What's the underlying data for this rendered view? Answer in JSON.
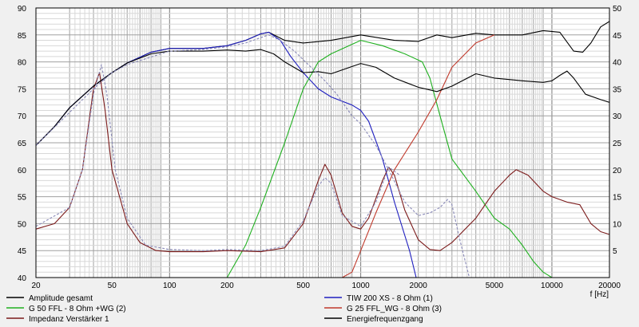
{
  "chart_data": {
    "type": "line",
    "xlabel": "f [Hz]",
    "x_scale": "log",
    "xlim": [
      20,
      20000
    ],
    "ylim_left": [
      40,
      90
    ],
    "ylim_right": [
      0,
      50
    ],
    "x_ticks": [
      {
        "v": 20,
        "label": "20"
      },
      {
        "v": 50,
        "label": "50"
      },
      {
        "v": 100,
        "label": "100"
      },
      {
        "v": 200,
        "label": "200"
      },
      {
        "v": 500,
        "label": "500"
      },
      {
        "v": 1000,
        "label": "1000"
      },
      {
        "v": 2000,
        "label": "2000"
      },
      {
        "v": 5000,
        "label": "5000"
      },
      {
        "v": 10000,
        "label": "10000"
      },
      {
        "v": 20000,
        "label": "20000"
      }
    ],
    "y_ticks_left": [
      "40",
      "45",
      "50",
      "55",
      "60",
      "65",
      "70",
      "75",
      "80",
      "85",
      "90"
    ],
    "y_ticks_right": [
      "5",
      "10",
      "15",
      "20",
      "25",
      "30",
      "35",
      "40",
      "45",
      "50"
    ],
    "grid": true,
    "legend_position": "bottom",
    "series": [
      {
        "name": "Amplitude gesamt",
        "color": "#000000",
        "axis": "left",
        "points": [
          [
            20,
            64.5
          ],
          [
            25,
            68
          ],
          [
            30,
            71.5
          ],
          [
            40,
            75.5
          ],
          [
            50,
            78
          ],
          [
            60,
            79.8
          ],
          [
            80,
            81.8
          ],
          [
            100,
            82.5
          ],
          [
            150,
            82.5
          ],
          [
            200,
            83
          ],
          [
            250,
            84
          ],
          [
            300,
            85.2
          ],
          [
            330,
            85.5
          ],
          [
            400,
            84
          ],
          [
            500,
            83.5
          ],
          [
            700,
            84
          ],
          [
            1000,
            85
          ],
          [
            1500,
            84
          ],
          [
            2000,
            83.8
          ],
          [
            2500,
            85
          ],
          [
            3000,
            84.5
          ],
          [
            4000,
            85.3
          ],
          [
            5000,
            85
          ],
          [
            7000,
            85
          ],
          [
            9000,
            85.8
          ],
          [
            11000,
            85.5
          ],
          [
            13000,
            82
          ],
          [
            14500,
            81.8
          ],
          [
            16000,
            83.5
          ],
          [
            18000,
            86.5
          ],
          [
            20000,
            87.5
          ]
        ]
      },
      {
        "name": "TIW 200 XS - 8 Ohm (1)",
        "color": "#1f1fbf",
        "axis": "left",
        "points": [
          [
            20,
            64.5
          ],
          [
            25,
            68
          ],
          [
            30,
            71.5
          ],
          [
            40,
            75.5
          ],
          [
            50,
            78
          ],
          [
            60,
            79.8
          ],
          [
            80,
            81.8
          ],
          [
            100,
            82.5
          ],
          [
            150,
            82.5
          ],
          [
            200,
            83
          ],
          [
            250,
            84
          ],
          [
            300,
            85.2
          ],
          [
            330,
            85.5
          ],
          [
            380,
            84
          ],
          [
            430,
            81
          ],
          [
            500,
            78
          ],
          [
            600,
            75
          ],
          [
            700,
            73.5
          ],
          [
            900,
            72
          ],
          [
            1000,
            71
          ],
          [
            1100,
            69
          ],
          [
            1300,
            62
          ],
          [
            1500,
            54
          ],
          [
            1800,
            45
          ],
          [
            1950,
            40
          ]
        ]
      },
      {
        "name": "G 50 FFL - 8 Ohm +WG (2)",
        "color": "#1fb01f",
        "axis": "left",
        "points": [
          [
            200,
            40
          ],
          [
            250,
            46
          ],
          [
            300,
            53
          ],
          [
            400,
            65
          ],
          [
            500,
            75
          ],
          [
            600,
            80
          ],
          [
            700,
            81.5
          ],
          [
            1000,
            84
          ],
          [
            1300,
            83
          ],
          [
            1700,
            81.5
          ],
          [
            2100,
            80
          ],
          [
            2300,
            77
          ],
          [
            2600,
            70
          ],
          [
            3000,
            62
          ],
          [
            4000,
            56
          ],
          [
            5000,
            51
          ],
          [
            6000,
            49
          ],
          [
            7000,
            46
          ],
          [
            8000,
            43
          ],
          [
            9000,
            41
          ],
          [
            10000,
            40
          ]
        ]
      },
      {
        "name": "G 25 FFL_WG - 8 Ohm (3)",
        "color": "#c0392b",
        "axis": "left",
        "points": [
          [
            800,
            40
          ],
          [
            900,
            41
          ],
          [
            1000,
            45
          ],
          [
            1200,
            52
          ],
          [
            1500,
            60
          ],
          [
            2000,
            67
          ],
          [
            2500,
            73
          ],
          [
            3000,
            79
          ],
          [
            4000,
            83.5
          ],
          [
            5000,
            85
          ]
        ]
      },
      {
        "name": "Impedanz Verstärker 1",
        "color": "#7b1a1a",
        "axis": "right",
        "points": [
          [
            20,
            9
          ],
          [
            25,
            10
          ],
          [
            30,
            13
          ],
          [
            35,
            20
          ],
          [
            40,
            35
          ],
          [
            43,
            38
          ],
          [
            46,
            31
          ],
          [
            50,
            20
          ],
          [
            60,
            10
          ],
          [
            70,
            6.5
          ],
          [
            85,
            5
          ],
          [
            100,
            4.8
          ],
          [
            150,
            4.8
          ],
          [
            200,
            5
          ],
          [
            300,
            4.8
          ],
          [
            400,
            5.5
          ],
          [
            500,
            10
          ],
          [
            600,
            18
          ],
          [
            650,
            21
          ],
          [
            700,
            19
          ],
          [
            800,
            12
          ],
          [
            900,
            9.5
          ],
          [
            1000,
            9
          ],
          [
            1100,
            11
          ],
          [
            1300,
            18
          ],
          [
            1400,
            20.5
          ],
          [
            1500,
            19
          ],
          [
            1700,
            12.5
          ],
          [
            2000,
            7
          ],
          [
            2300,
            5.2
          ],
          [
            2600,
            5
          ],
          [
            3000,
            6.5
          ],
          [
            4000,
            11
          ],
          [
            5000,
            16
          ],
          [
            6000,
            19
          ],
          [
            6500,
            20
          ],
          [
            7500,
            19
          ],
          [
            9000,
            16
          ],
          [
            10000,
            15
          ],
          [
            12000,
            14
          ],
          [
            14000,
            13.5
          ],
          [
            16000,
            10
          ],
          [
            18000,
            8.5
          ],
          [
            20000,
            8
          ]
        ]
      },
      {
        "name": "Energiefrequenzgang",
        "color": "#000000",
        "axis": "left",
        "points": [
          [
            20,
            64.5
          ],
          [
            25,
            68
          ],
          [
            30,
            71.5
          ],
          [
            40,
            75.5
          ],
          [
            50,
            78
          ],
          [
            60,
            79.8
          ],
          [
            80,
            81.5
          ],
          [
            100,
            82
          ],
          [
            150,
            82
          ],
          [
            200,
            82.2
          ],
          [
            250,
            82
          ],
          [
            300,
            82.3
          ],
          [
            350,
            81.5
          ],
          [
            400,
            80
          ],
          [
            500,
            78
          ],
          [
            600,
            78.2
          ],
          [
            700,
            77.8
          ],
          [
            1000,
            79.7
          ],
          [
            1200,
            79
          ],
          [
            1500,
            77
          ],
          [
            2000,
            75.3
          ],
          [
            2500,
            74.5
          ],
          [
            3000,
            75.5
          ],
          [
            4000,
            77.8
          ],
          [
            5000,
            77
          ],
          [
            7000,
            76.5
          ],
          [
            9000,
            76.2
          ],
          [
            10000,
            76.5
          ],
          [
            11000,
            77.5
          ],
          [
            12000,
            78.3
          ],
          [
            13000,
            77
          ],
          [
            15000,
            74
          ],
          [
            18000,
            73
          ],
          [
            20000,
            72.5
          ]
        ]
      },
      {
        "name": "",
        "color": "#8a8ab8",
        "axis": "left",
        "dashed": true,
        "points": [
          [
            20,
            64.5
          ],
          [
            40,
            75
          ],
          [
            50,
            78
          ],
          [
            60,
            79.5
          ],
          [
            100,
            82
          ],
          [
            150,
            82.3
          ],
          [
            200,
            82.8
          ],
          [
            250,
            83.5
          ],
          [
            300,
            84.5
          ],
          [
            330,
            85
          ],
          [
            380,
            84
          ],
          [
            450,
            82
          ],
          [
            550,
            79
          ],
          [
            650,
            76.5
          ],
          [
            750,
            74
          ],
          [
            900,
            70
          ],
          [
            1000,
            68.5
          ],
          [
            1200,
            64.5
          ],
          [
            1400,
            60
          ],
          [
            1700,
            54
          ],
          [
            2000,
            51.5
          ],
          [
            2300,
            52
          ],
          [
            2600,
            53
          ],
          [
            2850,
            54.5
          ],
          [
            3000,
            53.5
          ],
          [
            3300,
            47
          ],
          [
            3700,
            40
          ]
        ]
      },
      {
        "name": "",
        "color": "#8a8ab8",
        "axis": "right",
        "dashed": true,
        "points": [
          [
            20,
            9.5
          ],
          [
            30,
            13
          ],
          [
            35,
            20
          ],
          [
            40,
            34
          ],
          [
            44,
            39.5
          ],
          [
            47,
            34
          ],
          [
            52,
            20
          ],
          [
            60,
            11
          ],
          [
            75,
            6
          ],
          [
            100,
            5.2
          ],
          [
            150,
            5
          ],
          [
            200,
            5.2
          ],
          [
            300,
            5
          ],
          [
            400,
            5.8
          ],
          [
            500,
            10.5
          ],
          [
            600,
            17
          ],
          [
            650,
            18.5
          ],
          [
            700,
            17.5
          ],
          [
            800,
            11.5
          ],
          [
            1000,
            9.5
          ],
          [
            1200,
            14
          ],
          [
            1400,
            20.5
          ],
          [
            1600,
            19
          ]
        ]
      }
    ]
  },
  "legend": [
    {
      "label": "Amplitude gesamt",
      "color": "#000000"
    },
    {
      "label": "TIW 200 XS - 8 Ohm (1)",
      "color": "#1f1fbf"
    },
    {
      "label": "G 50 FFL - 8 Ohm +WG (2)",
      "color": "#1fb01f"
    },
    {
      "label": "G 25 FFL_WG - 8 Ohm (3)",
      "color": "#c0392b"
    },
    {
      "label": "Impedanz Verstärker 1",
      "color": "#7b1a1a"
    },
    {
      "label": "Energiefrequenzgang",
      "color": "#000000"
    }
  ]
}
